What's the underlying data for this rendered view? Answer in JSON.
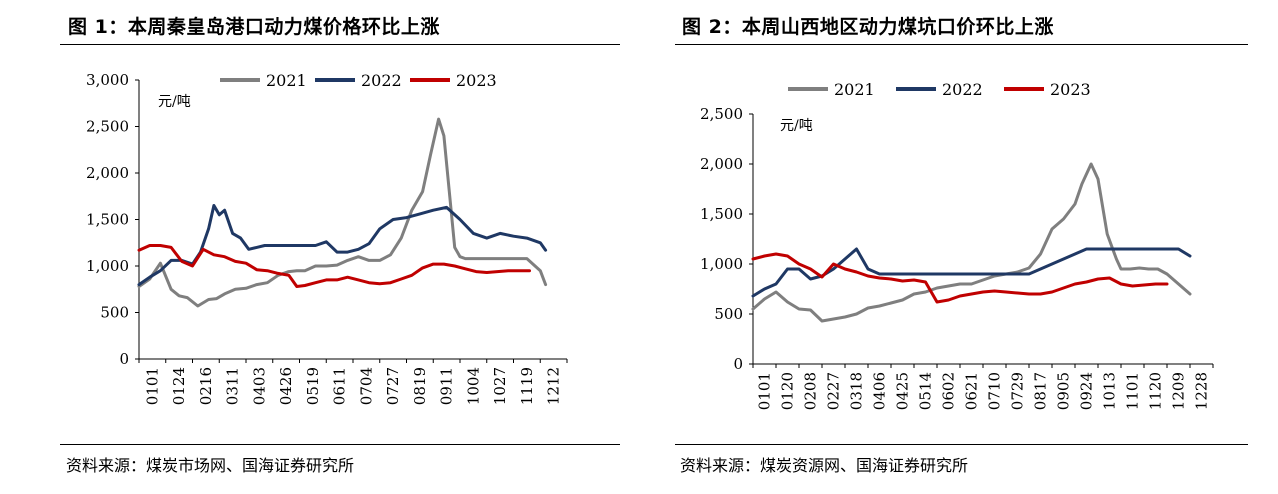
{
  "panels": [
    {
      "title": "图 1：本周秦皇岛港口动力煤价格环比上涨",
      "source": "资料来源：煤炭市场网、国海证券研究所"
    },
    {
      "title": "图 2：本周山西地区动力煤坑口价环比上涨",
      "source": "资料来源：煤炭资源网、国海证券研究所"
    }
  ],
  "chart_data": [
    {
      "type": "line",
      "title": "本周秦皇岛港口动力煤价格环比上涨",
      "unit_label": "元/吨",
      "ylim": [
        0,
        3000
      ],
      "yticks": [
        0,
        500,
        1000,
        1500,
        2000,
        2500,
        3000
      ],
      "ytick_labels": [
        "0",
        "500",
        "1,000",
        "1,500",
        "2,000",
        "2,500",
        "3,000"
      ],
      "xtick_labels": [
        "0101",
        "0124",
        "0216",
        "0311",
        "0403",
        "0426",
        "0519",
        "0611",
        "0704",
        "0727",
        "0819",
        "0911",
        "1004",
        "1027",
        "1119",
        "1212"
      ],
      "x_count": 16,
      "legend_position": "top",
      "series": [
        {
          "name": "2021",
          "color": "#7f7f7f",
          "x": [
            0,
            0.4,
            0.8,
            1.2,
            1.5,
            1.8,
            2.2,
            2.6,
            2.9,
            3.2,
            3.6,
            4.0,
            4.4,
            4.8,
            5.2,
            5.6,
            5.9,
            6.2,
            6.6,
            7.0,
            7.4,
            7.8,
            8.2,
            8.6,
            9.0,
            9.4,
            9.8,
            10.2,
            10.6,
            10.9,
            11.2,
            11.4,
            11.6,
            11.8,
            12.0,
            12.2,
            12.5,
            12.8,
            13.1,
            13.5,
            14.0,
            14.5,
            15.0,
            15.2
          ],
          "y": [
            780,
            860,
            1030,
            750,
            680,
            660,
            570,
            640,
            650,
            700,
            750,
            760,
            800,
            820,
            900,
            940,
            950,
            950,
            1000,
            1000,
            1010,
            1060,
            1100,
            1060,
            1060,
            1120,
            1300,
            1600,
            1800,
            2200,
            2580,
            2400,
            1800,
            1200,
            1100,
            1080,
            1080,
            1080,
            1080,
            1080,
            1080,
            1080,
            950,
            800
          ]
        },
        {
          "name": "2022",
          "color": "#1f3864",
          "x": [
            0,
            0.4,
            0.8,
            1.2,
            1.6,
            2.0,
            2.3,
            2.6,
            2.8,
            3.0,
            3.2,
            3.5,
            3.8,
            4.1,
            4.4,
            4.7,
            5.0,
            5.4,
            5.8,
            6.2,
            6.6,
            7.0,
            7.4,
            7.8,
            8.2,
            8.6,
            9.0,
            9.5,
            10.0,
            10.5,
            11.0,
            11.5,
            12.0,
            12.5,
            13.0,
            13.5,
            14.0,
            14.5,
            15.0,
            15.2
          ],
          "y": [
            800,
            880,
            950,
            1060,
            1060,
            1020,
            1150,
            1400,
            1650,
            1550,
            1600,
            1350,
            1300,
            1180,
            1200,
            1220,
            1220,
            1220,
            1220,
            1220,
            1220,
            1260,
            1150,
            1150,
            1180,
            1240,
            1400,
            1500,
            1520,
            1560,
            1600,
            1630,
            1500,
            1350,
            1300,
            1350,
            1320,
            1300,
            1250,
            1170
          ]
        },
        {
          "name": "2023",
          "color": "#c00000",
          "x": [
            0,
            0.4,
            0.8,
            1.2,
            1.6,
            2.0,
            2.4,
            2.8,
            3.2,
            3.6,
            4.0,
            4.4,
            4.8,
            5.2,
            5.6,
            5.9,
            6.2,
            6.6,
            7.0,
            7.4,
            7.8,
            8.2,
            8.6,
            9.0,
            9.4,
            9.8,
            10.2,
            10.6,
            11.0,
            11.4,
            11.8,
            12.2,
            12.6,
            13.0,
            13.4,
            13.8,
            14.2,
            14.6
          ],
          "y": [
            1170,
            1220,
            1220,
            1200,
            1050,
            1000,
            1180,
            1120,
            1100,
            1050,
            1030,
            960,
            950,
            920,
            900,
            780,
            790,
            820,
            850,
            850,
            880,
            850,
            820,
            810,
            820,
            860,
            900,
            980,
            1020,
            1020,
            1000,
            970,
            940,
            930,
            940,
            950,
            950,
            950
          ]
        }
      ]
    },
    {
      "type": "line",
      "title": "本周山西地区动力煤坑口价环比上涨",
      "unit_label": "元/吨",
      "ylim": [
        0,
        2500
      ],
      "yticks": [
        0,
        500,
        1000,
        1500,
        2000,
        2500
      ],
      "ytick_labels": [
        "0",
        "500",
        "1,000",
        "1,500",
        "2,000",
        "2,500"
      ],
      "xtick_labels": [
        "0101",
        "0120",
        "0208",
        "0227",
        "0318",
        "0406",
        "0425",
        "0514",
        "0602",
        "0621",
        "0710",
        "0729",
        "0817",
        "0905",
        "0924",
        "1013",
        "1101",
        "1120",
        "1209",
        "1228"
      ],
      "x_count": 20,
      "legend_position": "top",
      "series": [
        {
          "name": "2021",
          "color": "#7f7f7f",
          "x": [
            0,
            0.5,
            1.0,
            1.5,
            2.0,
            2.5,
            3.0,
            3.5,
            4.0,
            4.5,
            5.0,
            5.5,
            6.0,
            6.5,
            7.0,
            7.5,
            8.0,
            8.5,
            9.0,
            9.5,
            10.0,
            10.5,
            11.0,
            11.5,
            12.0,
            12.5,
            13.0,
            13.5,
            14.0,
            14.3,
            14.7,
            15.0,
            15.4,
            15.8,
            16.0,
            16.4,
            16.8,
            17.2,
            17.6,
            18.0,
            18.5,
            19.0
          ],
          "y": [
            550,
            650,
            720,
            620,
            550,
            540,
            430,
            450,
            470,
            500,
            560,
            580,
            610,
            640,
            700,
            720,
            760,
            780,
            800,
            800,
            840,
            880,
            900,
            920,
            960,
            1100,
            1350,
            1450,
            1600,
            1800,
            2000,
            1850,
            1300,
            1050,
            950,
            950,
            960,
            950,
            950,
            900,
            800,
            700
          ]
        },
        {
          "name": "2022",
          "color": "#1f3864",
          "x": [
            0,
            0.5,
            1.0,
            1.5,
            2.0,
            2.5,
            3.0,
            3.5,
            4.0,
            4.5,
            5.0,
            5.5,
            6.0,
            6.5,
            7.0,
            8.0,
            9.0,
            10.0,
            11.0,
            12.0,
            12.5,
            13.0,
            13.5,
            14.0,
            14.5,
            15.0,
            15.5,
            16.0,
            16.5,
            17.0,
            17.5,
            18.0,
            18.5,
            19.0
          ],
          "y": [
            680,
            750,
            800,
            950,
            950,
            850,
            880,
            950,
            1050,
            1150,
            950,
            900,
            900,
            900,
            900,
            900,
            900,
            900,
            900,
            900,
            950,
            1000,
            1050,
            1100,
            1150,
            1150,
            1150,
            1150,
            1150,
            1150,
            1150,
            1150,
            1150,
            1080
          ]
        },
        {
          "name": "2023",
          "color": "#c00000",
          "x": [
            0,
            0.5,
            1.0,
            1.5,
            2.0,
            2.5,
            3.0,
            3.5,
            4.0,
            4.5,
            5.0,
            5.5,
            6.0,
            6.5,
            7.0,
            7.5,
            8.0,
            8.5,
            9.0,
            9.5,
            10.0,
            10.5,
            11.0,
            11.5,
            12.0,
            12.5,
            13.0,
            13.5,
            14.0,
            14.5,
            15.0,
            15.5,
            16.0,
            16.5,
            17.0,
            17.5,
            18.0
          ],
          "y": [
            1050,
            1080,
            1100,
            1080,
            1000,
            950,
            870,
            1000,
            950,
            920,
            880,
            860,
            850,
            830,
            840,
            820,
            620,
            640,
            680,
            700,
            720,
            730,
            720,
            710,
            700,
            700,
            720,
            760,
            800,
            820,
            850,
            860,
            800,
            780,
            790,
            800,
            800
          ]
        }
      ]
    }
  ]
}
